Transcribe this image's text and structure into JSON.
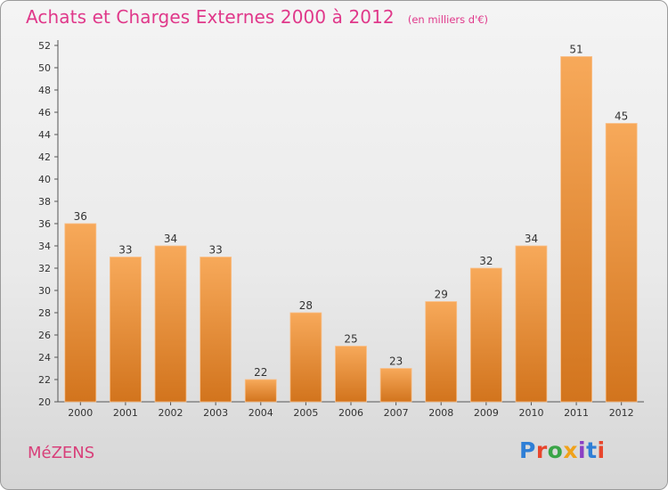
{
  "header": {
    "title": "Achats et Charges Externes 2000 à 2012",
    "unit": "(en milliers d'€)"
  },
  "footer": {
    "commune": "MéZENS",
    "logo_text": "Proxiti",
    "logo_colors": [
      "#2f7fd6",
      "#e8452c",
      "#3aa547",
      "#f0a21a",
      "#8a3fc4",
      "#2f7fd6",
      "#e8452c"
    ]
  },
  "colors": {
    "bar_top": "#f7a95a",
    "bar_bottom": "#d2741d",
    "title": "#e0388a"
  },
  "chart_data": {
    "type": "bar",
    "title": "Achats et Charges Externes 2000 à 2012",
    "xlabel": "",
    "ylabel": "",
    "categories": [
      "2000",
      "2001",
      "2002",
      "2003",
      "2004",
      "2005",
      "2006",
      "2007",
      "2008",
      "2009",
      "2010",
      "2011",
      "2012"
    ],
    "values": [
      36,
      33,
      34,
      33,
      22,
      28,
      25,
      23,
      29,
      32,
      34,
      51,
      45
    ],
    "ylim": [
      20,
      52
    ],
    "yticks": [
      20,
      22,
      24,
      26,
      28,
      30,
      32,
      34,
      36,
      38,
      40,
      42,
      44,
      46,
      48,
      50,
      52
    ],
    "grid": false,
    "legend": "none"
  }
}
